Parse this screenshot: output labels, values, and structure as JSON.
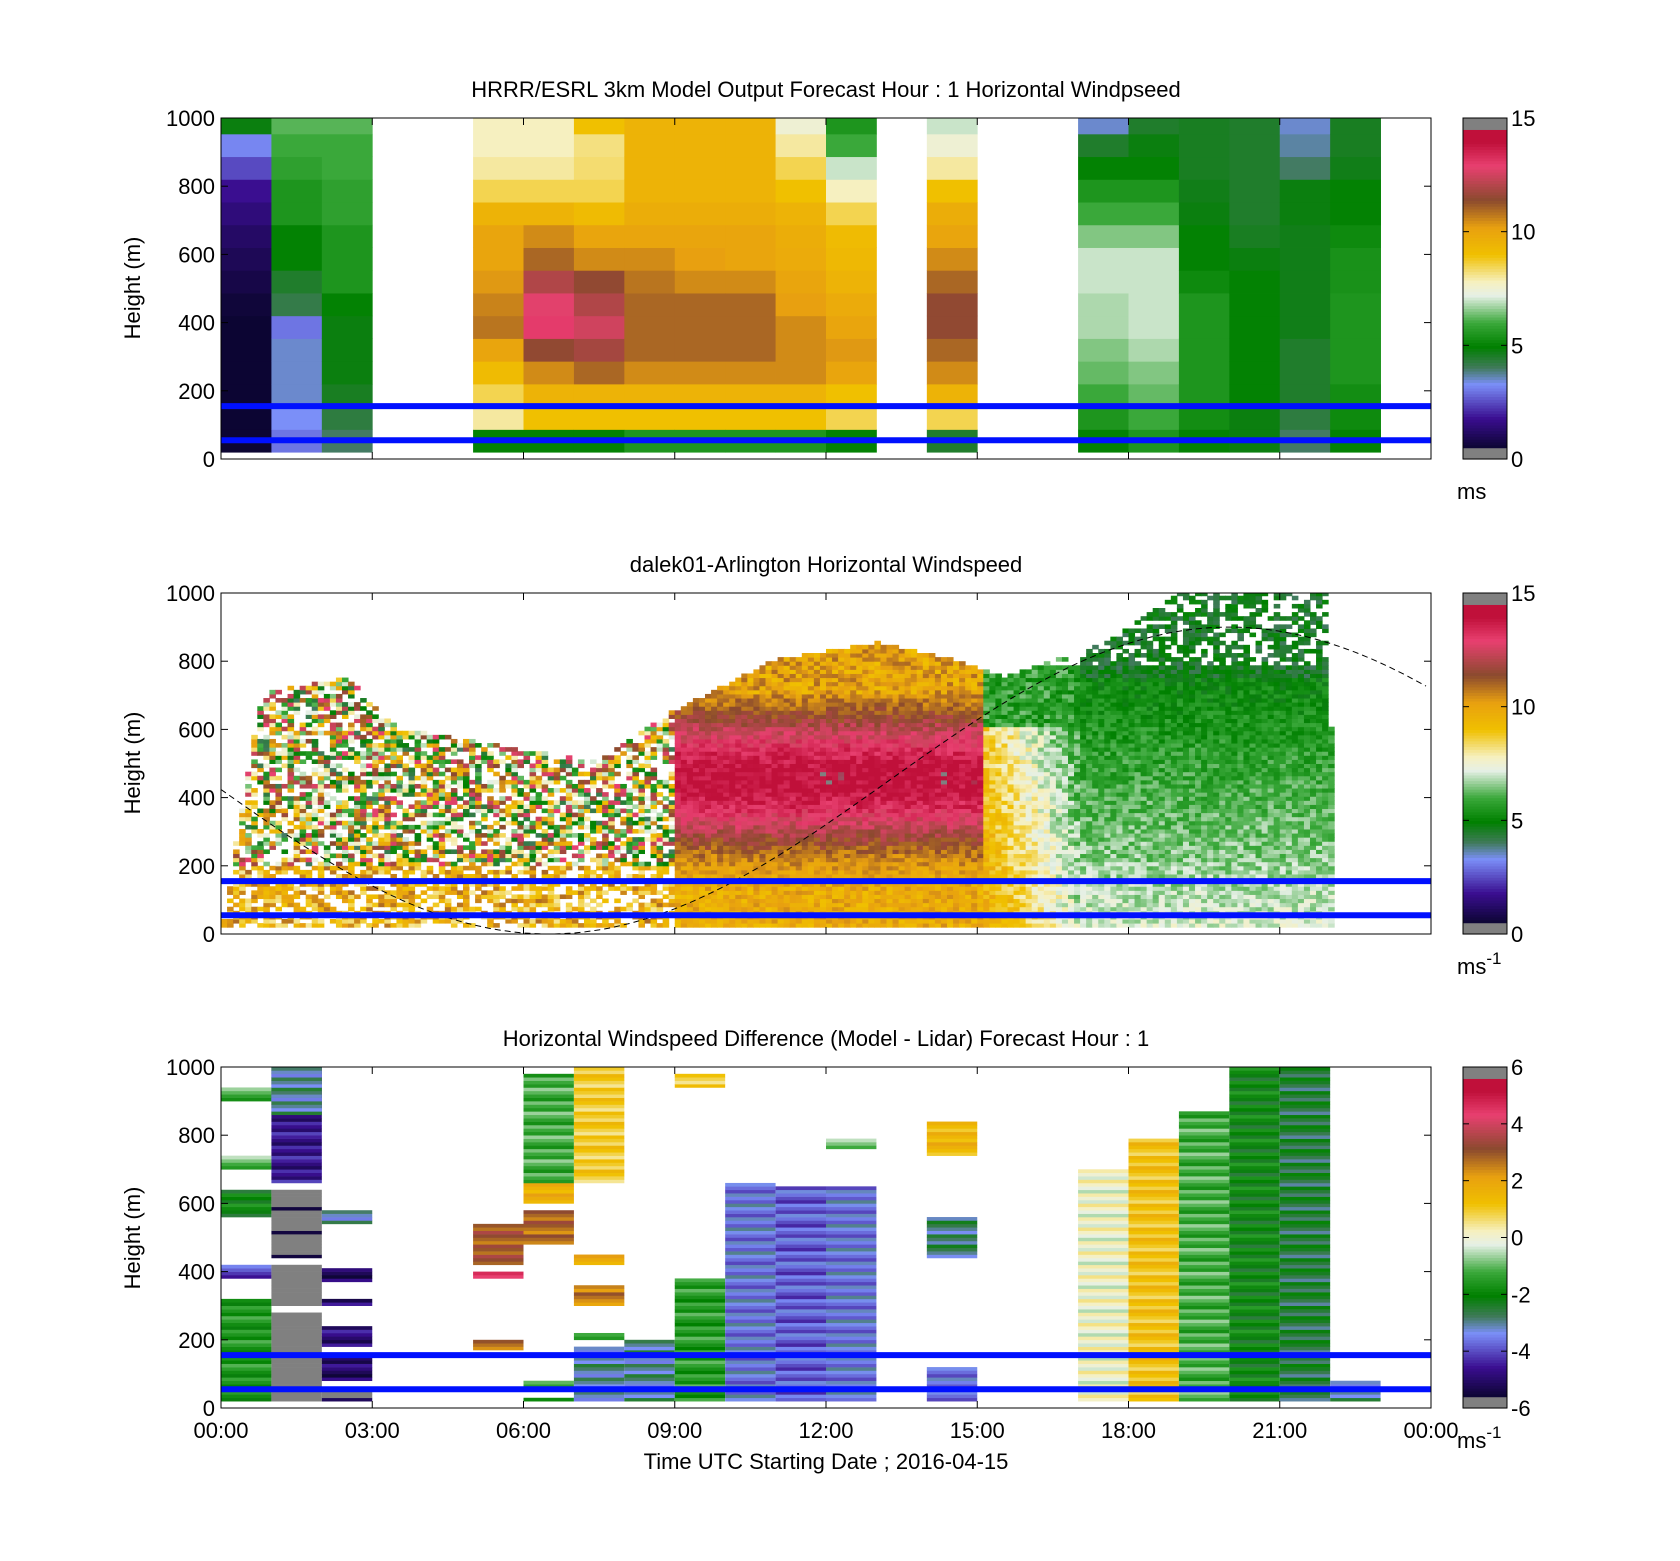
{
  "figure": {
    "x_title": "Time UTC  Starting Date ; 2016-04-15"
  },
  "chart_data": [
    {
      "type": "heatmap",
      "title": "HRRR/ESRL 3km Model Output   Forecast Hour : 1 Horizontal Windpseed",
      "ylabel": "Height (m)",
      "ylim": [
        0,
        1000
      ],
      "xlim_hours": [
        0,
        24
      ],
      "yticks": [
        0,
        200,
        400,
        600,
        800,
        1000
      ],
      "xtick_labels": [
        "00:00",
        "03:00",
        "06:00",
        "09:00",
        "12:00",
        "15:00",
        "18:00",
        "21:00",
        "00:00"
      ],
      "show_xtick_labels": false,
      "colorbar": {
        "min": 0,
        "max": 15,
        "ticks": [
          0,
          5,
          10,
          15
        ],
        "unit": "ms",
        "unit_sup": ""
      },
      "reference_heights_m": [
        155,
        55
      ],
      "columns": [
        {
          "hour": 0,
          "values": [
            0.5,
            0.5,
            0.5,
            0.5,
            0.5,
            0.5,
            0.6,
            0.8,
            1.0,
            1.2,
            1.5,
            1.8,
            2.5,
            3.2,
            4.8
          ]
        },
        {
          "hour": 1,
          "values": [
            3.0,
            3.3,
            3.5,
            3.5,
            3.5,
            3.0,
            4.2,
            4.5,
            5.0,
            5.0,
            5.5,
            5.5,
            5.8,
            6.0,
            6.2
          ]
        },
        {
          "hour": 2,
          "values": [
            4.0,
            4.3,
            4.6,
            4.8,
            4.8,
            4.8,
            5.0,
            5.5,
            5.5,
            5.5,
            5.8,
            5.8,
            6.0,
            6.0,
            6.2
          ]
        },
        {
          "hour": 5,
          "values": [
            5.0,
            8.0,
            8.5,
            9.2,
            10.0,
            10.8,
            10.6,
            10.3,
            10.0,
            10.0,
            9.5,
            8.5,
            8.0,
            7.8,
            7.8
          ]
        },
        {
          "hour": 6,
          "values": [
            5.0,
            9.0,
            9.5,
            10.5,
            11.5,
            13.0,
            12.8,
            12.0,
            11.0,
            10.5,
            9.5,
            8.5,
            8.0,
            7.8,
            7.8
          ]
        },
        {
          "hour": 7,
          "values": [
            5.0,
            9.0,
            9.5,
            11.0,
            11.8,
            12.5,
            12.0,
            11.5,
            10.5,
            10.0,
            9.2,
            8.5,
            8.3,
            8.2,
            9.0
          ]
        },
        {
          "hour": 8,
          "values": [
            5.5,
            9.0,
            9.5,
            10.5,
            11.0,
            11.0,
            11.0,
            10.8,
            10.5,
            10.0,
            9.7,
            9.5,
            9.5,
            9.5,
            9.5
          ]
        },
        {
          "hour": 9,
          "values": [
            5.5,
            9.0,
            9.5,
            10.5,
            11.0,
            11.0,
            11.0,
            10.5,
            10.2,
            10.0,
            9.7,
            9.5,
            9.5,
            9.5,
            9.5
          ]
        },
        {
          "hour": 10,
          "values": [
            5.5,
            9.0,
            9.5,
            10.5,
            11.0,
            11.0,
            11.0,
            10.5,
            10.0,
            10.0,
            9.7,
            9.5,
            9.5,
            9.5,
            9.5
          ]
        },
        {
          "hour": 11,
          "values": [
            5.5,
            9.0,
            9.5,
            10.5,
            10.5,
            10.5,
            10.2,
            10.0,
            9.8,
            9.7,
            9.5,
            9.0,
            8.5,
            8.0,
            7.5
          ]
        },
        {
          "hour": 12,
          "values": [
            5.0,
            8.5,
            9.0,
            10.0,
            10.3,
            10.0,
            9.8,
            9.5,
            9.3,
            9.2,
            8.5,
            7.8,
            7.0,
            6.0,
            5.5
          ]
        },
        {
          "hour": 14,
          "values": [
            4.5,
            8.5,
            9.5,
            10.5,
            11.0,
            11.5,
            11.5,
            11.0,
            10.5,
            10.0,
            9.7,
            9.0,
            8.0,
            7.5,
            7.0
          ]
        },
        {
          "hour": 17,
          "values": [
            5.0,
            5.5,
            6.0,
            6.3,
            6.5,
            6.8,
            6.8,
            7.0,
            7.0,
            6.5,
            6.0,
            5.5,
            5.0,
            4.5,
            3.5
          ]
        },
        {
          "hour": 18,
          "values": [
            5.5,
            6.0,
            6.3,
            6.5,
            6.8,
            7.0,
            7.0,
            7.0,
            7.0,
            6.5,
            6.0,
            5.5,
            5.0,
            4.8,
            4.5
          ]
        },
        {
          "hour": 19,
          "values": [
            5.0,
            5.3,
            5.5,
            5.5,
            5.5,
            5.5,
            5.5,
            5.2,
            5.0,
            5.0,
            4.8,
            4.7,
            4.6,
            4.6,
            4.6
          ]
        },
        {
          "hour": 20,
          "values": [
            4.8,
            4.8,
            5.0,
            5.0,
            5.0,
            5.0,
            5.0,
            5.0,
            4.8,
            4.6,
            4.5,
            4.5,
            4.5,
            4.5,
            4.5
          ]
        },
        {
          "hour": 21,
          "values": [
            4.0,
            4.3,
            4.5,
            4.5,
            4.5,
            4.7,
            4.7,
            4.7,
            4.7,
            4.7,
            4.8,
            4.8,
            4.0,
            3.7,
            3.5
          ]
        },
        {
          "hour": 22,
          "values": [
            5.0,
            5.2,
            5.3,
            5.5,
            5.5,
            5.5,
            5.5,
            5.4,
            5.4,
            5.2,
            5.0,
            5.0,
            4.7,
            4.6,
            4.6
          ]
        }
      ]
    },
    {
      "type": "heatmap",
      "title": "dalek01-Arlington  Horizontal Windspeed",
      "ylabel": "Height (m)",
      "ylim": [
        0,
        1000
      ],
      "xlim_hours": [
        0,
        24
      ],
      "yticks": [
        0,
        200,
        400,
        600,
        800,
        1000
      ],
      "xtick_labels": [
        "00:00",
        "03:00",
        "06:00",
        "09:00",
        "12:00",
        "15:00",
        "18:00",
        "21:00",
        "00:00"
      ],
      "show_xtick_labels": false,
      "colorbar": {
        "min": 0,
        "max": 15,
        "ticks": [
          0,
          5,
          10,
          15
        ],
        "unit": "ms",
        "unit_sup": "-1"
      },
      "reference_heights_m": [
        155,
        55
      ],
      "top_profile": [
        [
          0,
          0
        ],
        [
          0.8,
          0.7
        ],
        [
          2.5,
          0.75
        ],
        [
          3.5,
          0.6
        ],
        [
          5.5,
          0.55
        ],
        [
          7.5,
          0.5
        ],
        [
          9.0,
          0.65
        ],
        [
          11.0,
          0.8
        ],
        [
          13.0,
          0.85
        ],
        [
          14.5,
          0.8
        ],
        [
          15.5,
          0.75
        ],
        [
          17.5,
          0.85
        ],
        [
          19.0,
          1.0
        ],
        [
          22.0,
          1.0
        ],
        [
          22.05,
          0
        ]
      ],
      "smooth_region_hours": [
        9,
        22
      ],
      "reference_curve": {
        "type": "sine",
        "baseline_m": 450,
        "amplitude_m": 450,
        "peak_hour": 20,
        "period_hours": 27
      }
    },
    {
      "type": "heatmap",
      "title": "Horizontal Windspeed Difference (Model - Lidar) Forecast Hour : 1",
      "ylabel": "Height (m)",
      "ylim": [
        0,
        1000
      ],
      "xlim_hours": [
        0,
        24
      ],
      "yticks": [
        0,
        200,
        400,
        600,
        800,
        1000
      ],
      "xtick_labels": [
        "00:00",
        "03:00",
        "06:00",
        "09:00",
        "12:00",
        "15:00",
        "18:00",
        "21:00",
        "00:00"
      ],
      "show_xtick_labels": true,
      "colorbar": {
        "min": -6,
        "max": 6,
        "ticks": [
          -6,
          -4,
          -2,
          0,
          2,
          4,
          6
        ],
        "unit": "ms",
        "unit_sup": "-1"
      },
      "reference_heights_m": [
        155,
        55
      ],
      "columns": [
        {
          "hour": 0,
          "values": [
            [
              20,
              320,
              -1.6
            ],
            [
              380,
              420,
              -4.0
            ],
            [
              560,
              640,
              -2.0
            ],
            [
              700,
              740,
              -1.0
            ],
            [
              900,
              940,
              -1.2
            ]
          ]
        },
        {
          "hour": 1,
          "values": [
            [
              20,
              280,
              -7
            ],
            [
              300,
              420,
              -7
            ],
            [
              440,
              640,
              -6
            ],
            [
              660,
              1000,
              -4.6
            ],
            [
              860,
              1000,
              -3.0
            ]
          ]
        },
        {
          "hour": 2,
          "values": [
            [
              20,
              60,
              -5.5
            ],
            [
              80,
              160,
              -5.0
            ],
            [
              180,
              240,
              -4.8
            ],
            [
              300,
              320,
              -4.8
            ],
            [
              370,
              410,
              -5.0
            ],
            [
              540,
              580,
              -3.0
            ]
          ]
        },
        {
          "hour": 5,
          "values": [
            [
              170,
              200,
              2.5
            ],
            [
              380,
              400,
              4.5
            ],
            [
              420,
              540,
              3.0
            ]
          ]
        },
        {
          "hour": 6,
          "values": [
            [
              20,
              30,
              -1.5
            ],
            [
              60,
              80,
              -1.0
            ],
            [
              480,
              580,
              2.8
            ],
            [
              600,
              660,
              1.8
            ],
            [
              660,
              980,
              -1.2
            ]
          ]
        },
        {
          "hour": 7,
          "values": [
            [
              20,
              180,
              -3.0
            ],
            [
              200,
              220,
              -1.0
            ],
            [
              300,
              360,
              2.5
            ],
            [
              420,
              450,
              2.0
            ],
            [
              660,
              1000,
              1.0
            ]
          ]
        },
        {
          "hour": 8,
          "values": [
            [
              20,
              200,
              -3.0
            ]
          ]
        },
        {
          "hour": 9,
          "values": [
            [
              20,
              380,
              -1.5
            ],
            [
              940,
              980,
              1.0
            ]
          ]
        },
        {
          "hour": 10,
          "values": [
            [
              20,
              660,
              -3.5
            ]
          ]
        },
        {
          "hour": 11,
          "values": [
            [
              20,
              650,
              -3.8
            ]
          ]
        },
        {
          "hour": 12,
          "values": [
            [
              20,
              650,
              -3.5
            ],
            [
              760,
              790,
              -1.0
            ]
          ]
        },
        {
          "hour": 14,
          "values": [
            [
              20,
              120,
              -3.5
            ],
            [
              440,
              560,
              -2.8
            ],
            [
              740,
              840,
              1.5
            ]
          ]
        },
        {
          "hour": 17,
          "values": [
            [
              20,
              700,
              0.0
            ]
          ]
        },
        {
          "hour": 18,
          "values": [
            [
              20,
              790,
              1.2
            ]
          ]
        },
        {
          "hour": 19,
          "values": [
            [
              20,
              870,
              -1.2
            ]
          ]
        },
        {
          "hour": 20,
          "values": [
            [
              20,
              1000,
              -2.0
            ]
          ]
        },
        {
          "hour": 21,
          "values": [
            [
              20,
              1000,
              -2.5
            ]
          ]
        },
        {
          "hour": 22,
          "values": [
            [
              20,
              80,
              -3.0
            ]
          ]
        }
      ]
    }
  ]
}
